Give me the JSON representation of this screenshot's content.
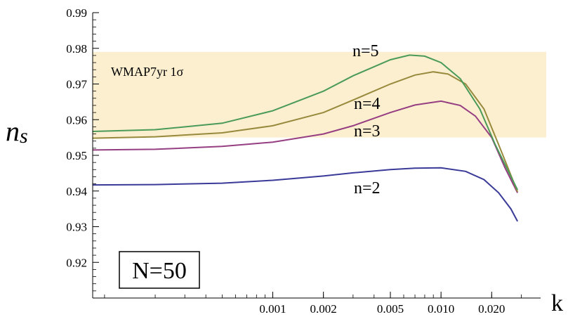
{
  "chart_data": {
    "type": "line",
    "title": "",
    "xlabel": "k",
    "ylabel": "n",
    "ylabel_sub": "s",
    "x_scale": "log",
    "xlim": [
      8.5e-05,
      0.0355
    ],
    "ylim": [
      0.91,
      0.99
    ],
    "x_ticks": [
      {
        "value": 0.001,
        "label": "0.001"
      },
      {
        "value": 0.002,
        "label": "0.002"
      },
      {
        "value": 0.005,
        "label": "0.005"
      },
      {
        "value": 0.01,
        "label": "0.010"
      },
      {
        "value": 0.02,
        "label": "0.020"
      }
    ],
    "y_ticks": [
      {
        "value": 0.92,
        "label": "0.92"
      },
      {
        "value": 0.93,
        "label": "0.93"
      },
      {
        "value": 0.94,
        "label": "0.94"
      },
      {
        "value": 0.95,
        "label": "0.95"
      },
      {
        "value": 0.96,
        "label": "0.96"
      },
      {
        "value": 0.97,
        "label": "0.97"
      },
      {
        "value": 0.98,
        "label": "0.98"
      },
      {
        "value": 0.99,
        "label": "0.99"
      }
    ],
    "band": {
      "label": "WMAP7yr 1σ",
      "ymin": 0.955,
      "ymax": 0.979,
      "color": "#fbefd0"
    },
    "box_label": "N=50",
    "grid": false,
    "series": [
      {
        "name": "n=2",
        "color": "#3a3a98",
        "points": [
          [
            8.5e-05,
            0.9417
          ],
          [
            0.0002,
            0.9418
          ],
          [
            0.0005,
            0.9422
          ],
          [
            0.001,
            0.943
          ],
          [
            0.002,
            0.9442
          ],
          [
            0.003,
            0.9451
          ],
          [
            0.005,
            0.946
          ],
          [
            0.007,
            0.9464
          ],
          [
            0.01,
            0.9465
          ],
          [
            0.014,
            0.9455
          ],
          [
            0.018,
            0.9432
          ],
          [
            0.022,
            0.9395
          ],
          [
            0.026,
            0.935
          ],
          [
            0.0285,
            0.9315
          ]
        ]
      },
      {
        "name": "n=3",
        "color": "#963e82",
        "points": [
          [
            8.5e-05,
            0.9515
          ],
          [
            0.0002,
            0.9517
          ],
          [
            0.0005,
            0.9525
          ],
          [
            0.001,
            0.9537
          ],
          [
            0.002,
            0.956
          ],
          [
            0.003,
            0.9583
          ],
          [
            0.005,
            0.962
          ],
          [
            0.007,
            0.9641
          ],
          [
            0.01,
            0.9652
          ],
          [
            0.013,
            0.964
          ],
          [
            0.016,
            0.961
          ],
          [
            0.02,
            0.955
          ],
          [
            0.024,
            0.9465
          ],
          [
            0.0285,
            0.9395
          ]
        ]
      },
      {
        "name": "n=4",
        "color": "#988a3c",
        "points": [
          [
            8.5e-05,
            0.9548
          ],
          [
            0.0002,
            0.9552
          ],
          [
            0.0005,
            0.9563
          ],
          [
            0.001,
            0.9583
          ],
          [
            0.002,
            0.962
          ],
          [
            0.003,
            0.9655
          ],
          [
            0.005,
            0.97
          ],
          [
            0.007,
            0.9725
          ],
          [
            0.009,
            0.9734
          ],
          [
            0.011,
            0.9728
          ],
          [
            0.014,
            0.97
          ],
          [
            0.018,
            0.963
          ],
          [
            0.022,
            0.953
          ],
          [
            0.0285,
            0.9398
          ]
        ]
      },
      {
        "name": "n=5",
        "color": "#4a9a58",
        "points": [
          [
            8.5e-05,
            0.9567
          ],
          [
            0.0002,
            0.9572
          ],
          [
            0.0005,
            0.959
          ],
          [
            0.001,
            0.9625
          ],
          [
            0.002,
            0.968
          ],
          [
            0.003,
            0.9723
          ],
          [
            0.005,
            0.9768
          ],
          [
            0.0065,
            0.9781
          ],
          [
            0.008,
            0.9778
          ],
          [
            0.01,
            0.976
          ],
          [
            0.013,
            0.9715
          ],
          [
            0.017,
            0.963
          ],
          [
            0.021,
            0.953
          ],
          [
            0.0285,
            0.9403
          ]
        ]
      }
    ],
    "series_label_at": [
      {
        "x": 0.0045,
        "y": 0.9785
      },
      {
        "x": 0.0048,
        "y": 0.9648
      },
      {
        "x": 0.0048,
        "y": 0.9565
      },
      {
        "x": 0.0048,
        "y": 0.9403
      },
      {
        "x": 0.0048,
        "y": 0.9315
      }
    ]
  }
}
